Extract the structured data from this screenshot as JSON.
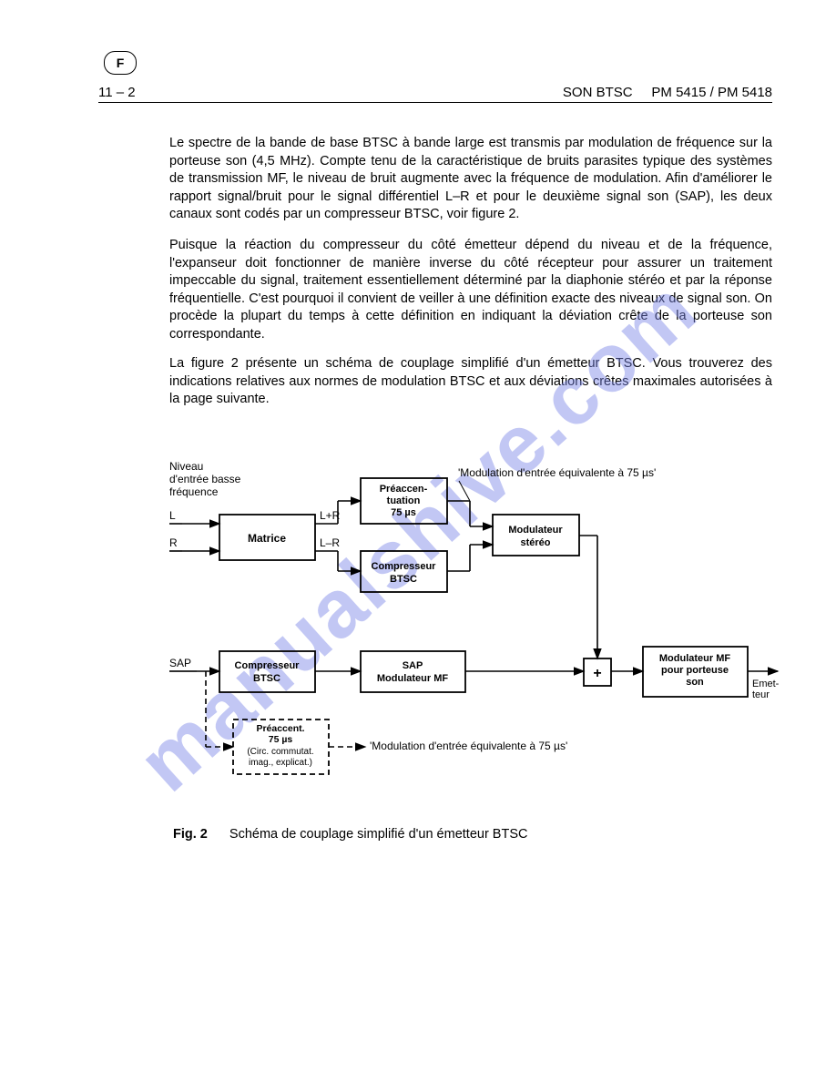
{
  "header": {
    "badge_letter": "F",
    "page_left": "11 – 2",
    "title_center": "SON BTSC",
    "title_right": "PM 5415 / PM 5418"
  },
  "paragraphs": {
    "p1": "Le spectre de la bande de base BTSC à bande large est transmis par modulation de fréquence sur la porteuse son (4,5 MHz). Compte tenu de la caractéristique de bruits parasites typique des systèmes de transmission MF, le niveau de bruit augmente avec la fréquence de modulation. Afin d'améliorer le rapport signal/bruit pour le signal différentiel L–R et pour le deuxième signal son (SAP), les deux canaux sont codés par un compresseur BTSC, voir figure 2.",
    "p2": "Puisque la réaction du compresseur du côté émetteur dépend du niveau et de la fréquence, l'expanseur doit fonctionner de manière inverse du côté récepteur pour assurer un traitement impeccable du signal, traitement essentiellement déterminé par la diaphonie stéréo et par la réponse fréquentielle. C'est pourquoi il convient de veiller à une définition exacte des niveaux de signal son. On procède la plupart du temps à cette définition en indiquant la déviation crête de la porteuse son correspondante.",
    "p3": "La figure 2 présente un schéma de couplage simplifié d'un émetteur BTSC. Vous trouverez des indications relatives aux normes de modulation BTSC et aux déviations crêtes maximales autorisées à la page suivante."
  },
  "figure": {
    "caption_label": "Fig. 2",
    "caption_text": "Schéma de couplage simplifié d'un émetteur BTSC",
    "labels": {
      "niveau": "Niveau\nd'entrée basse\nfréquence",
      "L": "L",
      "R": "R",
      "SAP": "SAP",
      "LplusR": "L+R",
      "LminusR": "L–R",
      "mod_equiv_top": "'Modulation d'entrée équivalente à 75 µs'",
      "mod_equiv_bottom": "'Modulation d'entrée équivalente à 75 µs'",
      "emetteur": "Emet-\nteur",
      "plus": "+"
    },
    "boxes": {
      "matrice": "Matrice",
      "preaccent": "Préaccen-\ntuation\n75 µs",
      "comp_btsc_top": "Compresseur\nBTSC",
      "mod_stereo": "Modulateur\nstéréo",
      "comp_btsc_sap": "Compresseur\nBTSC",
      "sap_mod_mf": "SAP\nModulateur MF",
      "mod_mf_porteuse": "Modulateur MF\npour porteuse\nson",
      "preaccent_dashed": "Préaccent.\n75 µs\n(Circ. commutat.\nimag., explicat.)"
    },
    "style": {
      "stroke": "#000000",
      "stroke_width": 1.6,
      "box_stroke_width": 1.8,
      "font_size_box": 12,
      "font_size_box_bold": 12,
      "background": "#ffffff"
    }
  },
  "watermark": "manualshive.com"
}
